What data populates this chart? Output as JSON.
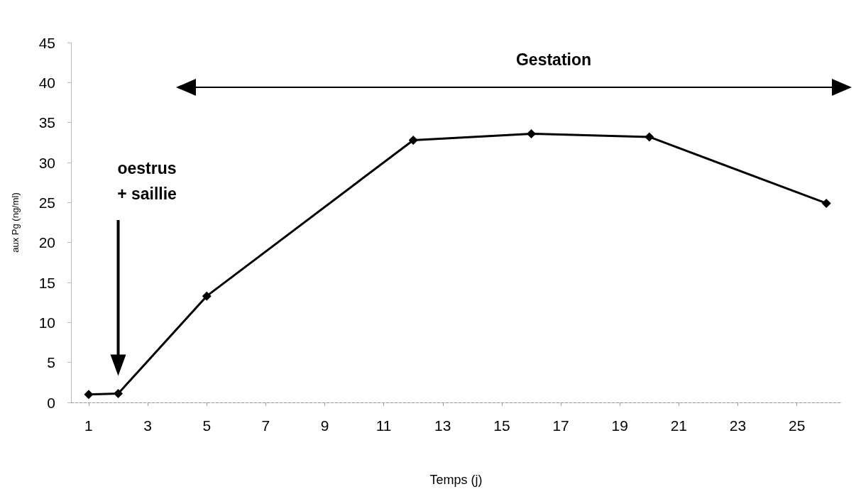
{
  "chart_data": {
    "type": "line",
    "xlabel": "Temps (j)",
    "ylabel": "aux Pg (ng/ml)",
    "x": [
      1,
      2,
      5,
      12,
      16,
      20,
      26
    ],
    "series": [
      {
        "color": "#000000",
        "values": [
          1.0,
          1.1,
          13.3,
          32.8,
          33.6,
          33.2,
          24.9
        ]
      }
    ],
    "xlim": [
      0.4,
      26.5
    ],
    "xticks": [
      1,
      3,
      5,
      7,
      9,
      11,
      13,
      15,
      17,
      19,
      21,
      23,
      25
    ],
    "ylim": [
      0,
      45
    ],
    "yticks": [
      0,
      5,
      10,
      15,
      20,
      25,
      30,
      35,
      40,
      45
    ],
    "marker": "diamond",
    "line_style": "solid",
    "grid": false,
    "annotations": [
      "Gestation",
      "oestrus\n+ saillie"
    ]
  }
}
